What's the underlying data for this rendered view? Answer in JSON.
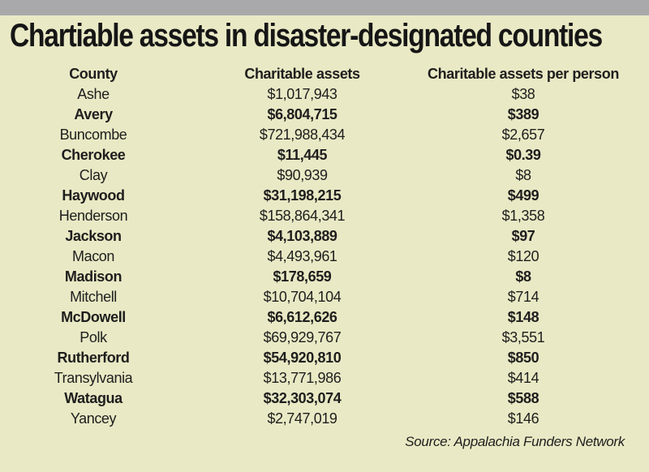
{
  "page": {
    "title": "Chartiable assets in disaster-designated counties",
    "source": "Source: Appalachia Funders Network"
  },
  "colors": {
    "background": "#e9e9c5",
    "top_bar": "#a9a9ab",
    "text": "#1e1e1e"
  },
  "table": {
    "columns": [
      "County",
      "Charitable assets",
      "Charitable assets per person"
    ],
    "rows": [
      {
        "county": "Ashe",
        "assets": "$1,017,943",
        "per_person": "$38"
      },
      {
        "county": "Avery",
        "assets": "$6,804,715",
        "per_person": "$389"
      },
      {
        "county": "Buncombe",
        "assets": "$721,988,434",
        "per_person": "$2,657"
      },
      {
        "county": "Cherokee",
        "assets": "$11,445",
        "per_person": "$0.39"
      },
      {
        "county": "Clay",
        "assets": "$90,939",
        "per_person": "$8"
      },
      {
        "county": "Haywood",
        "assets": "$31,198,215",
        "per_person": "$499"
      },
      {
        "county": "Henderson",
        "assets": "$158,864,341",
        "per_person": "$1,358"
      },
      {
        "county": "Jackson",
        "assets": "$4,103,889",
        "per_person": "$97"
      },
      {
        "county": "Macon",
        "assets": "$4,493,961",
        "per_person": "$120"
      },
      {
        "county": "Madison",
        "assets": "$178,659",
        "per_person": "$8"
      },
      {
        "county": "Mitchell",
        "assets": "$10,704,104",
        "per_person": "$714"
      },
      {
        "county": "McDowell",
        "assets": "$6,612,626",
        "per_person": "$148"
      },
      {
        "county": "Polk",
        "assets": "$69,929,767",
        "per_person": "$3,551"
      },
      {
        "county": "Rutherford",
        "assets": "$54,920,810",
        "per_person": "$850"
      },
      {
        "county": "Transylvania",
        "assets": "$13,771,986",
        "per_person": "$414"
      },
      {
        "county": "Watagua",
        "assets": "$32,303,074",
        "per_person": "$588"
      },
      {
        "county": "Yancey",
        "assets": "$2,747,019",
        "per_person": "$146"
      }
    ]
  },
  "chart_data": {
    "type": "table",
    "title": "Chartiable assets in disaster-designated counties",
    "columns": [
      "County",
      "Charitable assets",
      "Charitable assets per person"
    ],
    "rows": [
      [
        "Ashe",
        1017943,
        38
      ],
      [
        "Avery",
        6804715,
        389
      ],
      [
        "Buncombe",
        721988434,
        2657
      ],
      [
        "Cherokee",
        11445,
        0.39
      ],
      [
        "Clay",
        90939,
        8
      ],
      [
        "Haywood",
        31198215,
        499
      ],
      [
        "Henderson",
        158864341,
        1358
      ],
      [
        "Jackson",
        4103889,
        97
      ],
      [
        "Macon",
        4493961,
        120
      ],
      [
        "Madison",
        178659,
        8
      ],
      [
        "Mitchell",
        10704104,
        714
      ],
      [
        "McDowell",
        6612626,
        148
      ],
      [
        "Polk",
        69929767,
        3551
      ],
      [
        "Rutherford",
        54920810,
        850
      ],
      [
        "Transylvania",
        13771986,
        414
      ],
      [
        "Watagua",
        32303074,
        588
      ],
      [
        "Yancey",
        2747019,
        146
      ]
    ],
    "source": "Source: Appalachia Funders Network"
  }
}
